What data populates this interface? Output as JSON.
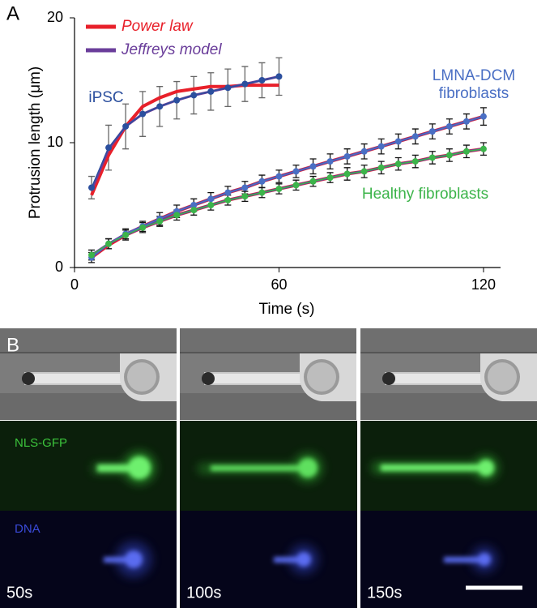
{
  "chart_data": {
    "type": "line",
    "panel_label": "A",
    "x_label": "Time (s)",
    "y_label": "Protrusion length (μm)",
    "xlim": [
      0,
      125
    ],
    "ylim": [
      0,
      20
    ],
    "xticks": [
      0,
      60,
      120
    ],
    "yticks": [
      0,
      10,
      20
    ],
    "series": [
      {
        "name": "iPSC",
        "color": "#2b4f9e",
        "x": [
          5,
          10,
          15,
          20,
          25,
          30,
          35,
          40,
          45,
          50,
          55,
          60
        ],
        "values": [
          6.4,
          9.6,
          11.3,
          12.3,
          12.9,
          13.4,
          13.8,
          14.1,
          14.4,
          14.7,
          15.0,
          15.3
        ],
        "errors": [
          0.9,
          1.8,
          1.8,
          1.8,
          1.6,
          1.5,
          1.5,
          1.5,
          1.5,
          1.4,
          1.4,
          1.5
        ]
      },
      {
        "name": "LMNA-DCM fibroblasts",
        "color": "#4a6fc4",
        "x": [
          5,
          10,
          15,
          20,
          25,
          30,
          35,
          40,
          45,
          50,
          55,
          60,
          65,
          70,
          75,
          80,
          85,
          90,
          95,
          100,
          105,
          110,
          115,
          120
        ],
        "values": [
          0.8,
          1.9,
          2.7,
          3.3,
          3.9,
          4.5,
          5.0,
          5.5,
          6.0,
          6.4,
          6.9,
          7.3,
          7.7,
          8.1,
          8.5,
          8.9,
          9.3,
          9.7,
          10.1,
          10.5,
          10.9,
          11.3,
          11.7,
          12.1
        ],
        "errors": [
          0.4,
          0.4,
          0.4,
          0.4,
          0.5,
          0.5,
          0.5,
          0.5,
          0.5,
          0.5,
          0.5,
          0.5,
          0.5,
          0.6,
          0.6,
          0.6,
          0.6,
          0.6,
          0.6,
          0.6,
          0.6,
          0.6,
          0.6,
          0.7
        ]
      },
      {
        "name": "Healthy fibroblasts",
        "color": "#3cb44a",
        "x": [
          5,
          10,
          15,
          20,
          25,
          30,
          35,
          40,
          45,
          50,
          55,
          60,
          65,
          70,
          75,
          80,
          85,
          90,
          95,
          100,
          105,
          110,
          115,
          120
        ],
        "values": [
          1.0,
          1.9,
          2.6,
          3.2,
          3.7,
          4.2,
          4.6,
          5.0,
          5.4,
          5.7,
          6.0,
          6.3,
          6.6,
          6.9,
          7.2,
          7.5,
          7.7,
          8.0,
          8.3,
          8.5,
          8.8,
          9.0,
          9.3,
          9.5
        ],
        "errors": [
          0.4,
          0.4,
          0.4,
          0.4,
          0.4,
          0.4,
          0.4,
          0.4,
          0.4,
          0.4,
          0.4,
          0.4,
          0.4,
          0.4,
          0.4,
          0.5,
          0.5,
          0.5,
          0.5,
          0.5,
          0.5,
          0.5,
          0.5,
          0.5
        ]
      }
    ],
    "fits": [
      {
        "name": "Power law",
        "color": "#e8202a",
        "curves": [
          [
            5.8,
            9.0,
            11.3,
            12.9,
            13.6,
            14.1,
            14.3,
            14.5,
            14.5,
            14.6,
            14.6,
            14.6
          ],
          [
            0.8,
            1.8,
            2.6,
            3.3,
            3.9,
            4.5,
            5.0,
            5.5,
            6.0,
            6.4,
            6.9,
            7.3,
            7.7,
            8.1,
            8.5,
            8.9,
            9.3,
            9.7,
            10.1,
            10.5,
            10.9,
            11.3,
            11.7,
            12.1
          ],
          [
            0.9,
            1.8,
            2.6,
            3.2,
            3.7,
            4.2,
            4.6,
            5.0,
            5.4,
            5.7,
            6.0,
            6.3,
            6.6,
            6.9,
            7.2,
            7.5,
            7.7,
            8.0,
            8.3,
            8.5,
            8.8,
            9.0,
            9.3,
            9.5
          ]
        ]
      },
      {
        "name": "Jeffreys model",
        "color": "#6a3d9a",
        "curves": [
          [
            6.2,
            9.5,
            11.3,
            12.3,
            12.9,
            13.4,
            13.8,
            14.1,
            14.4,
            14.7,
            15.0,
            15.3
          ],
          [
            0.8,
            1.9,
            2.7,
            3.3,
            3.9,
            4.5,
            5.0,
            5.5,
            6.0,
            6.4,
            6.9,
            7.3,
            7.7,
            8.1,
            8.5,
            8.9,
            9.3,
            9.7,
            10.1,
            10.5,
            10.9,
            11.3,
            11.7,
            12.1
          ],
          [
            1.0,
            1.9,
            2.6,
            3.2,
            3.7,
            4.2,
            4.6,
            5.0,
            5.4,
            5.7,
            6.0,
            6.3,
            6.6,
            6.9,
            7.2,
            7.5,
            7.7,
            8.0,
            8.3,
            8.5,
            8.8,
            9.0,
            9.3,
            9.5
          ]
        ]
      }
    ]
  },
  "images": {
    "panel_label": "B",
    "channels": [
      "NLS-GFP",
      "DNA"
    ],
    "times": [
      "50s",
      "100s",
      "150s"
    ]
  }
}
